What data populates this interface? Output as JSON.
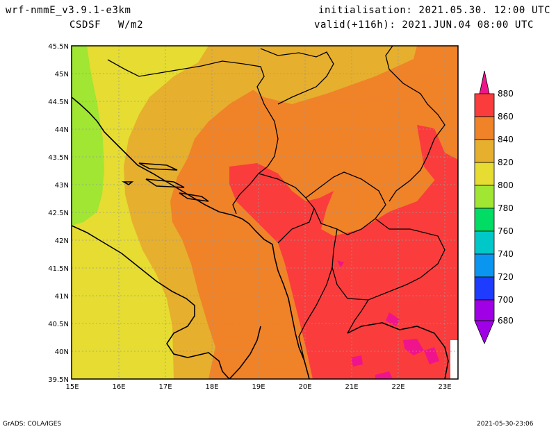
{
  "header": {
    "model": "wrf-nmmE_v3.9.1-e3km",
    "field": "CSDSF",
    "units": "W/m2",
    "init": "initialisation: 2021.05.30. 12:00 UTC",
    "valid": "valid(+116h): 2021.JUN.04 08:00 UTC"
  },
  "map": {
    "lat_ticks": [
      "45.5N",
      "45N",
      "44.5N",
      "44N",
      "43.5N",
      "43N",
      "42.5N",
      "42N",
      "41.5N",
      "41N",
      "40.5N",
      "40N",
      "39.5N"
    ],
    "lon_ticks": [
      "15E",
      "16E",
      "17E",
      "18E",
      "19E",
      "20E",
      "21E",
      "22E",
      "23E"
    ]
  },
  "colorbar": {
    "labels": [
      "880",
      "860",
      "840",
      "820",
      "800",
      "780",
      "760",
      "740",
      "720",
      "700",
      "680"
    ],
    "colors": [
      "#f0148c",
      "#fa3c3c",
      "#f08228",
      "#e6af2d",
      "#e6dc32",
      "#a0e632",
      "#00dc64",
      "#00c8c8",
      "#0a96f0",
      "#1e3cff",
      "#a000e6"
    ]
  },
  "footer": {
    "left": "GrADS: COLA/IGES",
    "right": "2021-05-30-23:06"
  }
}
